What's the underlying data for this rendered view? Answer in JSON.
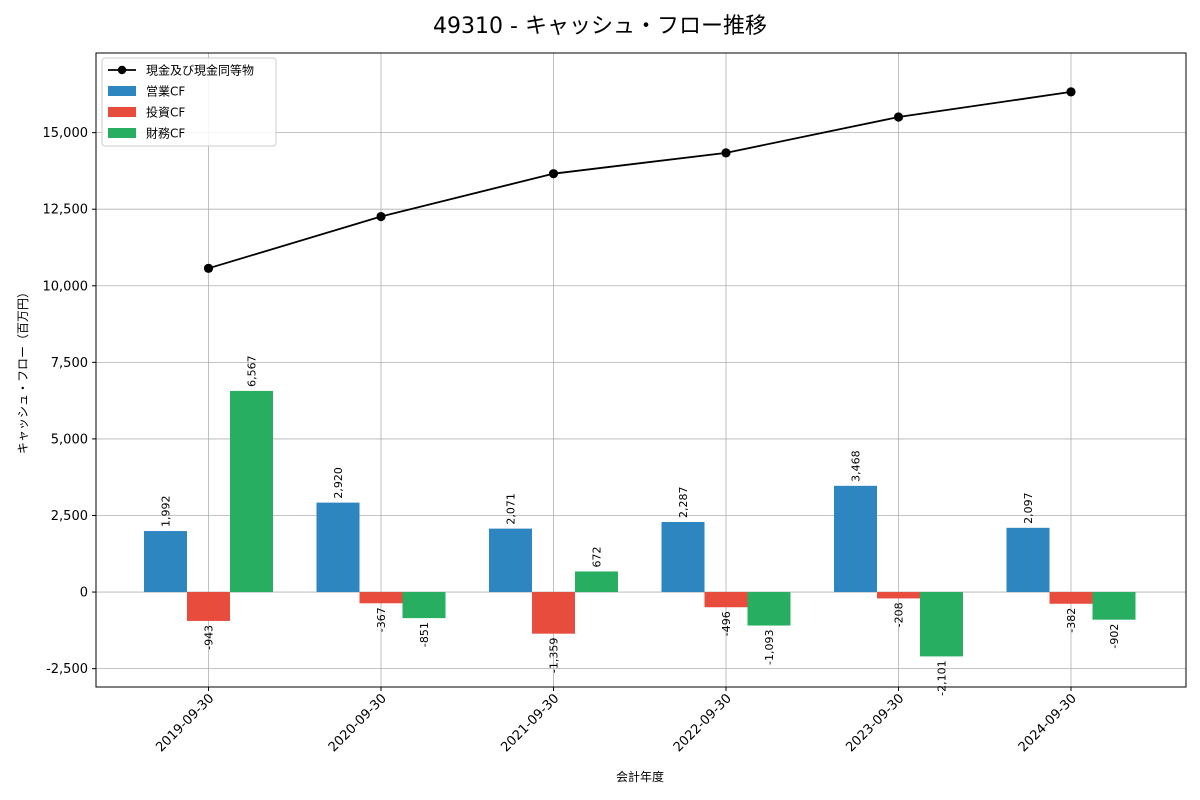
{
  "chart_data": {
    "type": "bar",
    "title": "49310 - キャッシュ・フロー推移",
    "xlabel": "会計年度",
    "ylabel": "キャッシュ・フロー（百万円）",
    "categories": [
      "2019-09-30",
      "2020-09-30",
      "2021-09-30",
      "2022-09-30",
      "2023-09-30",
      "2024-09-30"
    ],
    "ylim": [
      -3100,
      17600
    ],
    "yticks": [
      -2500,
      0,
      2500,
      5000,
      7500,
      10000,
      12500,
      15000
    ],
    "ytick_labels": [
      "-2,500",
      "0",
      "2,500",
      "5,000",
      "7,500",
      "10,000",
      "12,500",
      "15,000"
    ],
    "grid": true,
    "legend_position": "top-left",
    "line_series": {
      "name": "現金及び現金同等物",
      "color": "#000000",
      "values": [
        10570,
        12260,
        13660,
        14340,
        15510,
        16330
      ]
    },
    "series": [
      {
        "name": "営業CF",
        "color": "#2E86C1",
        "values": [
          1992,
          2920,
          2071,
          2287,
          3468,
          2097
        ],
        "labels": [
          "1,992",
          "2,920",
          "2,071",
          "2,287",
          "3,468",
          "2,097"
        ]
      },
      {
        "name": "投資CF",
        "color": "#E74C3C",
        "values": [
          -943,
          -367,
          -1359,
          -496,
          -208,
          -382
        ],
        "labels": [
          "-943",
          "-367",
          "-1,359",
          "-496",
          "-208",
          "-382"
        ]
      },
      {
        "name": "財務CF",
        "color": "#27AE60",
        "values": [
          6567,
          -851,
          672,
          -1093,
          -2101,
          -902
        ],
        "labels": [
          "6,567",
          "-851",
          "672",
          "-1,093",
          "-2,101",
          "-902"
        ]
      }
    ]
  }
}
